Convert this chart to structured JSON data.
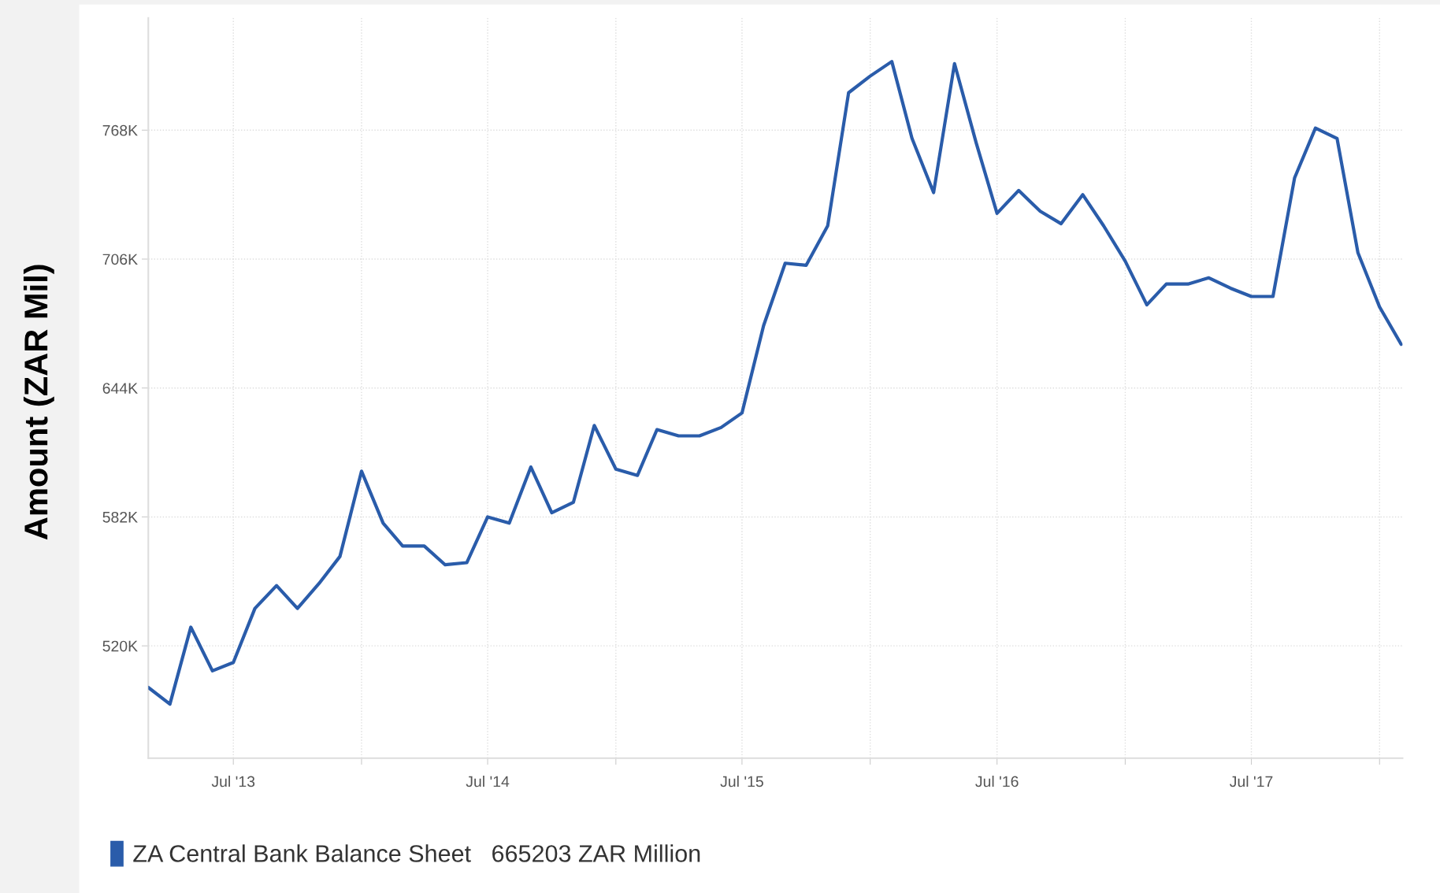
{
  "chart_data": {
    "type": "line",
    "ylabel": "Amount (ZAR Mil)",
    "x": [
      "2013-03",
      "2013-04",
      "2013-05",
      "2013-06",
      "2013-07",
      "2013-08",
      "2013-09",
      "2013-10",
      "2013-11",
      "2013-12",
      "2014-01",
      "2014-02",
      "2014-03",
      "2014-04",
      "2014-05",
      "2014-06",
      "2014-07",
      "2014-08",
      "2014-09",
      "2014-10",
      "2014-11",
      "2014-12",
      "2015-01",
      "2015-02",
      "2015-03",
      "2015-04",
      "2015-05",
      "2015-06",
      "2015-07",
      "2015-08",
      "2015-09",
      "2015-10",
      "2015-11",
      "2015-12",
      "2016-01",
      "2016-02",
      "2016-03",
      "2016-04",
      "2016-05",
      "2016-06",
      "2016-07",
      "2016-08",
      "2016-09",
      "2016-10",
      "2016-11",
      "2016-12",
      "2017-01",
      "2017-02",
      "2017-03",
      "2017-04",
      "2017-05",
      "2017-06",
      "2017-07",
      "2017-08",
      "2017-09",
      "2017-10",
      "2017-11",
      "2017-12",
      "2018-01",
      "2018-02"
    ],
    "series": [
      {
        "name": "ZA Central Bank Balance Sheet   665203 ZAR Million",
        "color": "#2a5caa",
        "values": [
          500000,
          492000,
          529000,
          508000,
          512000,
          538000,
          549000,
          538000,
          550000,
          563000,
          604000,
          579000,
          568000,
          568000,
          559000,
          560000,
          582000,
          579000,
          606000,
          584000,
          589000,
          626000,
          605000,
          602000,
          624000,
          621000,
          621000,
          625000,
          632000,
          674000,
          704000,
          703000,
          722000,
          786000,
          794000,
          801000,
          764000,
          738000,
          800000,
          762000,
          728000,
          739000,
          729000,
          723000,
          737000,
          722000,
          705000,
          684000,
          694000,
          694000,
          697000,
          692000,
          688000,
          688000,
          745000,
          769000,
          764000,
          709000,
          683000,
          665000
        ]
      }
    ],
    "xlim": [
      "2013-03-01",
      "2018-02-03"
    ],
    "xticks": [
      {
        "value": "2013-07-01",
        "label": "Jul '13"
      },
      {
        "value": "2014-01-01",
        "label": null
      },
      {
        "value": "2014-07-01",
        "label": "Jul '14"
      },
      {
        "value": "2015-01-01",
        "label": null
      },
      {
        "value": "2015-07-01",
        "label": "Jul '15"
      },
      {
        "value": "2016-01-01",
        "label": null
      },
      {
        "value": "2016-07-01",
        "label": "Jul '16"
      },
      {
        "value": "2017-01-01",
        "label": null
      },
      {
        "value": "2017-07-01",
        "label": "Jul '17"
      },
      {
        "value": "2018-01-01",
        "label": null
      }
    ],
    "ylim": [
      466000,
      822000
    ],
    "yticks": [
      {
        "value": 520000,
        "label": "520K"
      },
      {
        "value": 582000,
        "label": "582K"
      },
      {
        "value": 644000,
        "label": "644K"
      },
      {
        "value": 706000,
        "label": "706K"
      },
      {
        "value": 768000,
        "label": "768K"
      }
    ],
    "grid": true,
    "legend": "bottom left",
    "marker": "none",
    "line_style": "solid"
  }
}
